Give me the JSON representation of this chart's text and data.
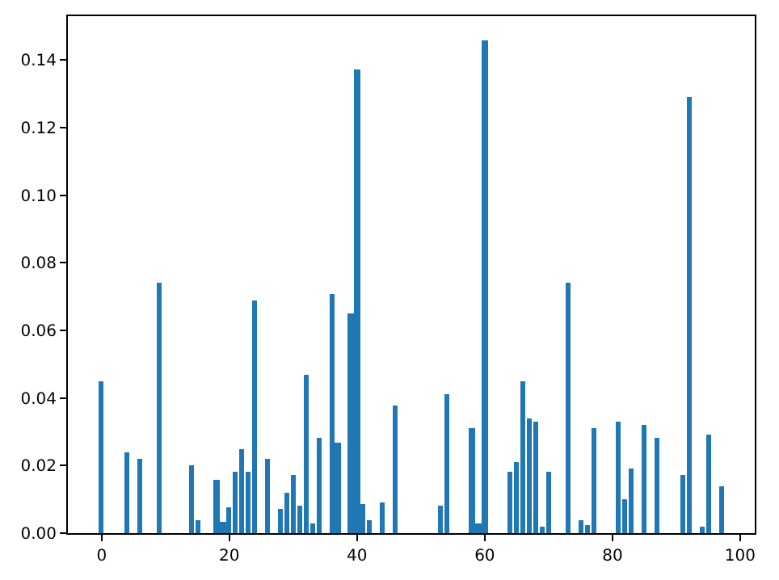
{
  "chart_data": {
    "type": "bar",
    "color": "#1f77b4",
    "x": [
      0,
      4,
      6,
      9,
      14,
      15,
      18,
      19,
      20,
      21,
      22,
      23,
      24,
      26,
      28,
      29,
      30,
      31,
      32,
      33,
      34,
      36,
      37,
      39,
      40,
      41,
      42,
      44,
      46,
      53,
      54,
      58,
      59,
      60,
      64,
      65,
      66,
      67,
      68,
      69,
      70,
      73,
      75,
      76,
      77,
      81,
      82,
      83,
      85,
      87,
      91,
      92,
      94,
      95,
      97
    ],
    "values": [
      0.045,
      0.024,
      0.022,
      0.074,
      0.02,
      0.004,
      0.016,
      0.0035,
      0.0075,
      0.018,
      0.025,
      0.018,
      0.069,
      0.022,
      0.007,
      0.012,
      0.017,
      0.008,
      0.047,
      0.003,
      0.028,
      0.071,
      0.027,
      0.065,
      0.137,
      0.0085,
      0.004,
      0.009,
      0.038,
      0.008,
      0.041,
      0.031,
      0.003,
      0.146,
      0.018,
      0.021,
      0.045,
      0.034,
      0.033,
      0.002,
      0.018,
      0.074,
      0.004,
      0.0025,
      0.031,
      0.033,
      0.01,
      0.019,
      0.032,
      0.028,
      0.017,
      0.129,
      0.002,
      0.029,
      0.014
    ],
    "xlim": [
      -5.29,
      102.29
    ],
    "ylim": [
      0,
      0.153
    ],
    "xticks": [
      0,
      20,
      40,
      60,
      80,
      100
    ],
    "yticks": [
      {
        "value": 0,
        "label": "0.00"
      },
      {
        "value": 0.02,
        "label": "0.02"
      },
      {
        "value": 0.04,
        "label": "0.04"
      },
      {
        "value": 0.06,
        "label": "0.06"
      },
      {
        "value": 0.08,
        "label": "0.08"
      },
      {
        "value": 0.1,
        "label": "0.10"
      },
      {
        "value": 0.12,
        "label": "0.12"
      },
      {
        "value": 0.14,
        "label": "0.14"
      }
    ],
    "legend": false
  }
}
